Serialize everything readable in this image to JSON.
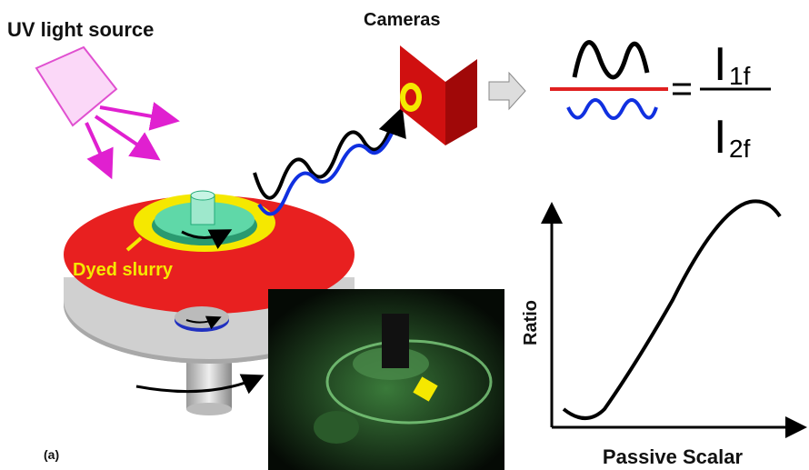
{
  "labels": {
    "uv_source": "UV light source",
    "cameras": "Cameras",
    "dyed_slurry": "Dyed slurry",
    "panel": "(a)"
  },
  "equation": {
    "numerator": "I",
    "numerator_sub": "1f",
    "denominator": "I",
    "denominator_sub": "2f"
  },
  "plot": {
    "y_label": "Ratio",
    "x_label": "Passive Scalar"
  }
}
